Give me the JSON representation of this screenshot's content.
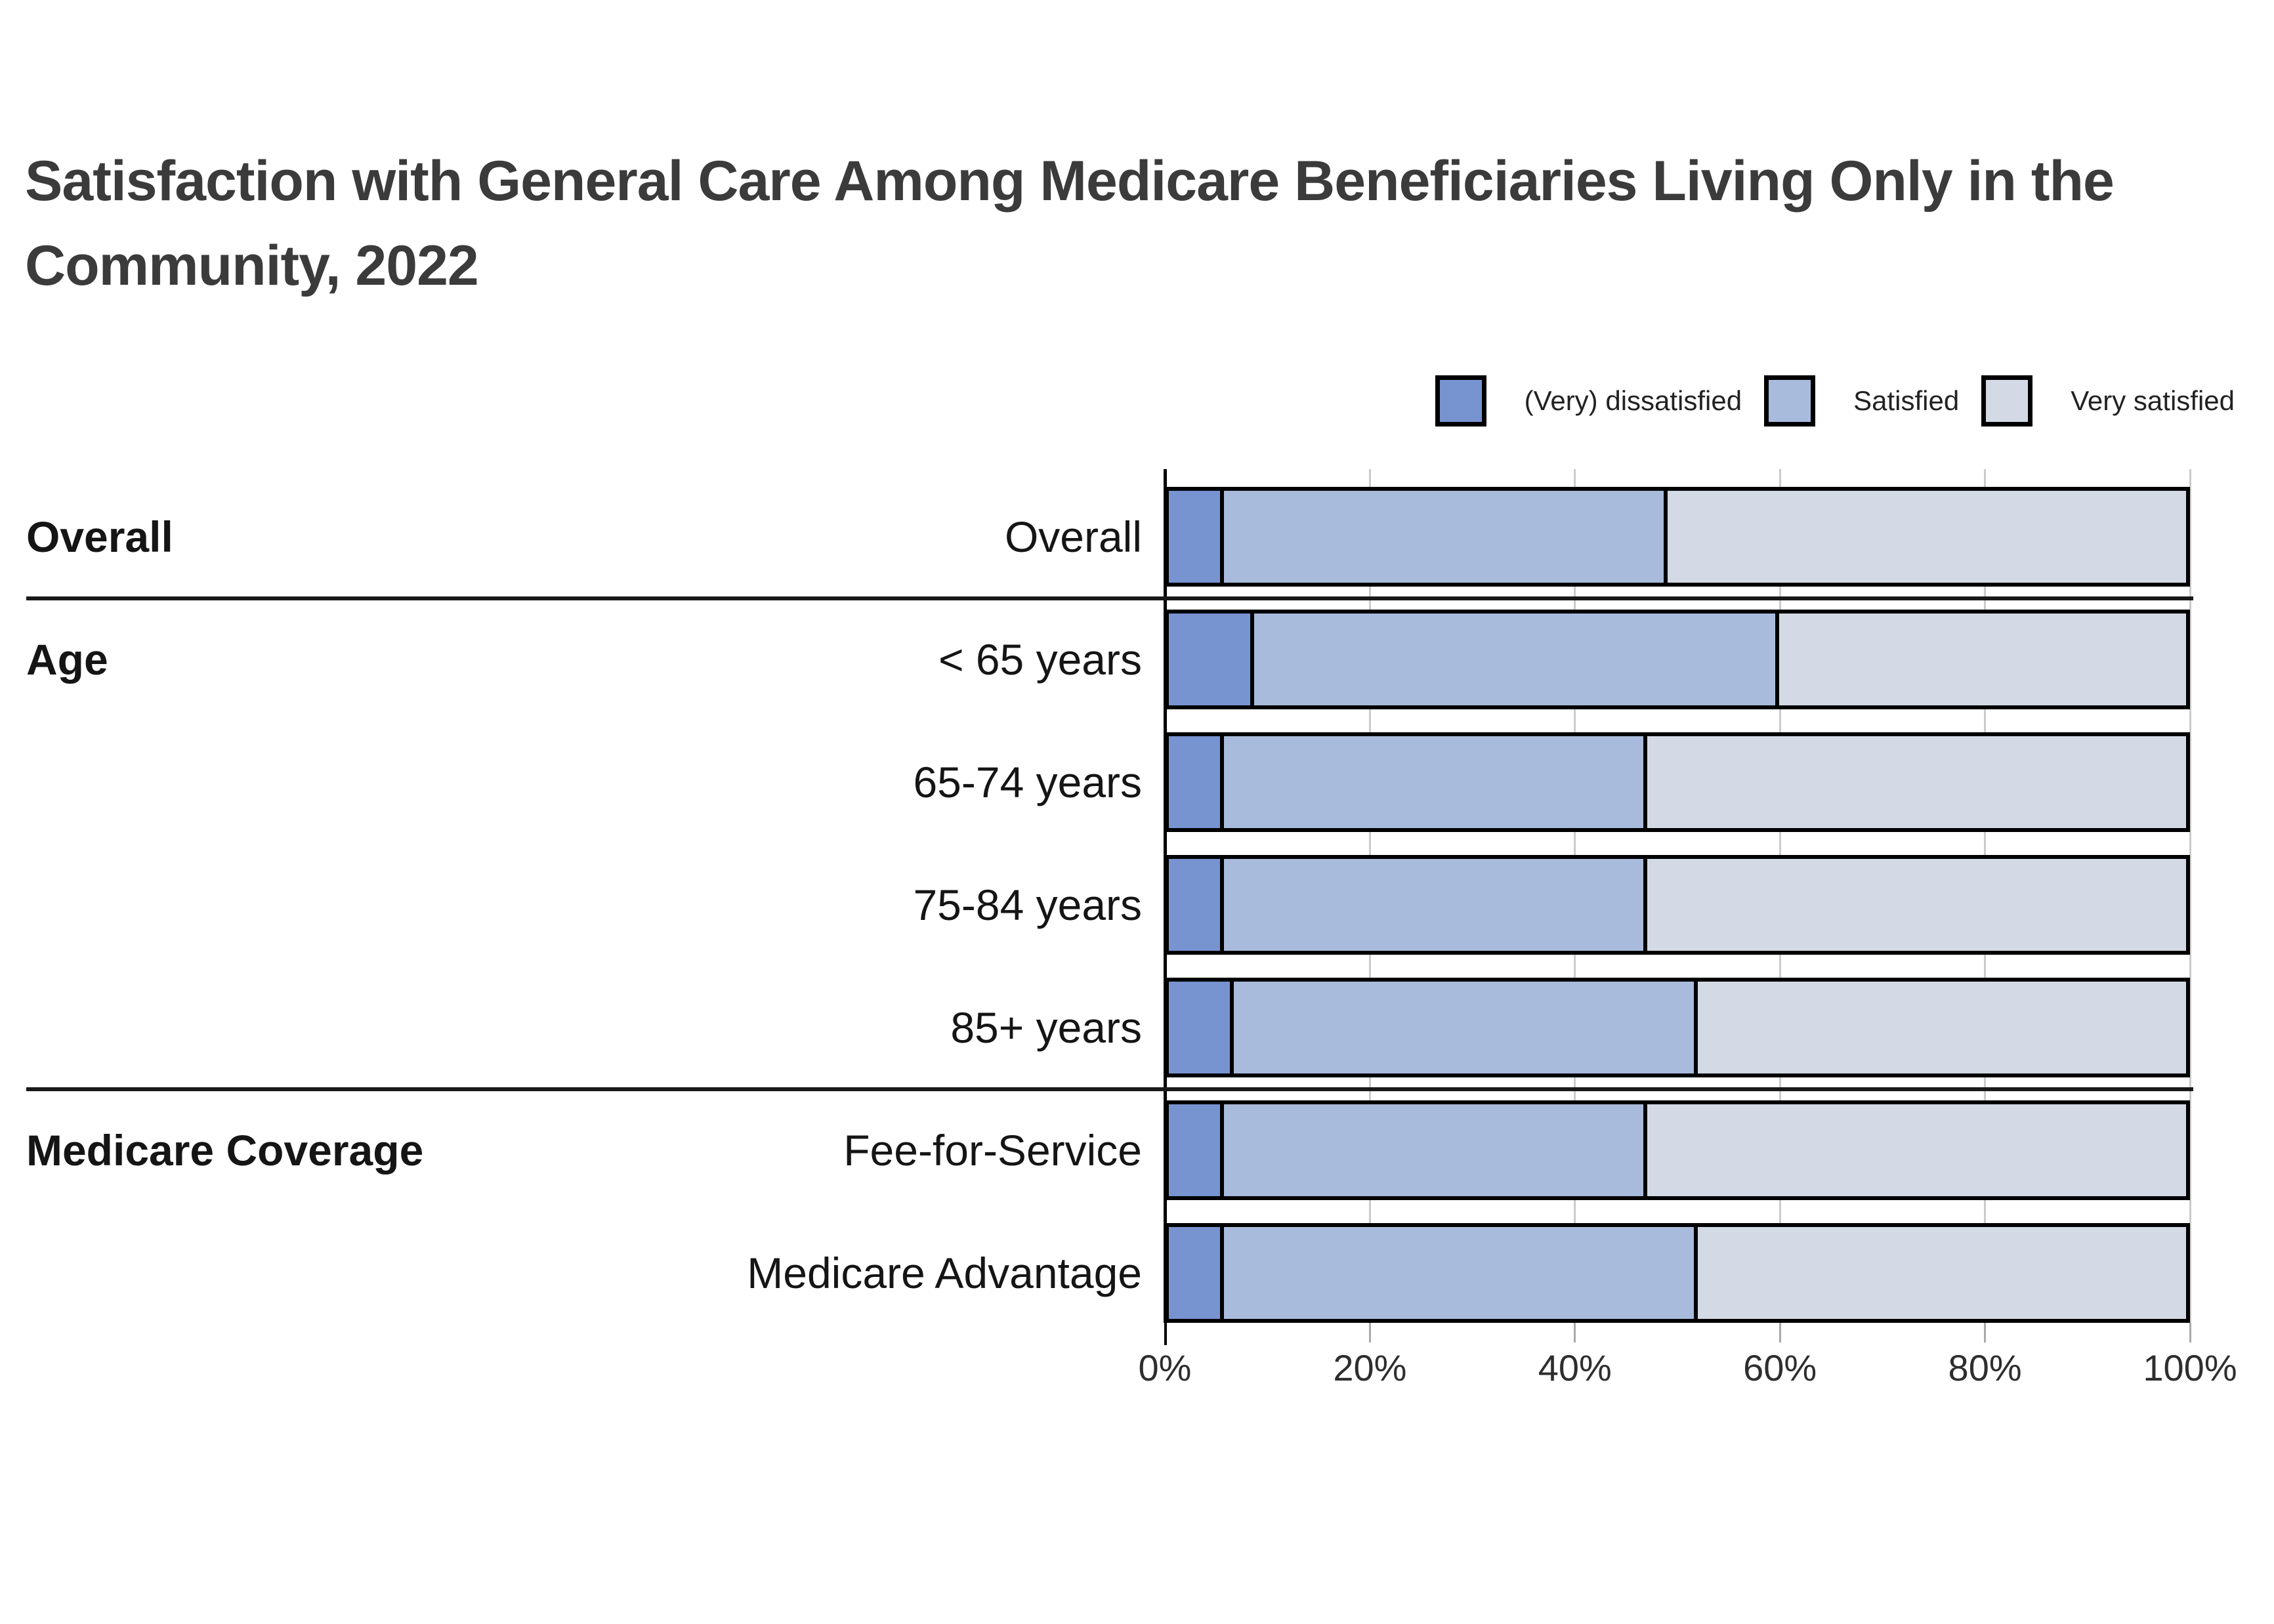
{
  "chart_data": {
    "type": "bar",
    "variant": "horizontal_stacked_100pct",
    "title": "Satisfaction with General Care Among Medicare Beneficiaries Living Only in the Community, 2022",
    "legend_position": "top-right",
    "grid": true,
    "series_names": [
      "(Very) dissatisfied",
      "Satisfied",
      "Very satisfied"
    ],
    "series_colors": [
      "#7794D0",
      "#A9BBDC",
      "#D3DAE5"
    ],
    "x_axis": {
      "min": 0,
      "max": 100,
      "unit": "%",
      "tick_labels": [
        "0%",
        "20%",
        "40%",
        "60%",
        "80%",
        "100%"
      ]
    },
    "groups": [
      {
        "group": "Overall",
        "rows": [
          {
            "label": "Overall",
            "values": [
              5,
              44,
              51
            ]
          }
        ]
      },
      {
        "group": "Age",
        "rows": [
          {
            "label": "< 65 years",
            "values": [
              8,
              52,
              40
            ]
          },
          {
            "label": "65-74 years",
            "values": [
              5,
              42,
              53
            ]
          },
          {
            "label": "75-84 years",
            "values": [
              5,
              42,
              53
            ]
          },
          {
            "label": "85+ years",
            "values": [
              6,
              46,
              48
            ]
          }
        ]
      },
      {
        "group": "Medicare Coverage",
        "rows": [
          {
            "label": "Fee-for-Service",
            "values": [
              5,
              42,
              53
            ]
          },
          {
            "label": "Medicare Advantage",
            "values": [
              5,
              47,
              48
            ]
          }
        ]
      }
    ]
  }
}
